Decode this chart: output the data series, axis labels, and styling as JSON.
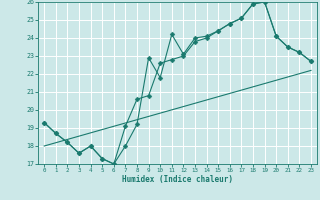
{
  "xlabel": "Humidex (Indice chaleur)",
  "xlim": [
    -0.5,
    23.5
  ],
  "ylim": [
    17,
    26
  ],
  "xticks": [
    0,
    1,
    2,
    3,
    4,
    5,
    6,
    7,
    8,
    9,
    10,
    11,
    12,
    13,
    14,
    15,
    16,
    17,
    18,
    19,
    20,
    21,
    22,
    23
  ],
  "yticks": [
    17,
    18,
    19,
    20,
    21,
    22,
    23,
    24,
    25,
    26
  ],
  "bg_color": "#cce8e8",
  "grid_color": "#ffffff",
  "line_color": "#1a7a6e",
  "line1_x": [
    0,
    1,
    2,
    3,
    4,
    5,
    6,
    7,
    8,
    9,
    10,
    11,
    12,
    13,
    14,
    15,
    16,
    17,
    18,
    19,
    20,
    21,
    22,
    23
  ],
  "line1_y": [
    19.3,
    18.7,
    18.2,
    17.6,
    18.0,
    17.3,
    17.0,
    18.0,
    19.2,
    22.9,
    21.8,
    24.2,
    23.1,
    24.0,
    24.1,
    24.4,
    24.8,
    25.1,
    25.9,
    26.0,
    24.1,
    23.5,
    23.2,
    22.7
  ],
  "line2_x": [
    0,
    1,
    2,
    3,
    4,
    5,
    6,
    7,
    8,
    9,
    10,
    11,
    12,
    13,
    14,
    15,
    16,
    17,
    18,
    19,
    20,
    21,
    22,
    23
  ],
  "line2_y": [
    19.3,
    18.7,
    18.2,
    17.6,
    18.0,
    17.3,
    17.0,
    19.1,
    20.6,
    20.8,
    22.6,
    22.8,
    23.0,
    23.8,
    24.0,
    24.4,
    24.8,
    25.1,
    25.9,
    26.0,
    24.1,
    23.5,
    23.2,
    22.7
  ],
  "line3_x": [
    0,
    23
  ],
  "line3_y": [
    18.0,
    22.2
  ]
}
